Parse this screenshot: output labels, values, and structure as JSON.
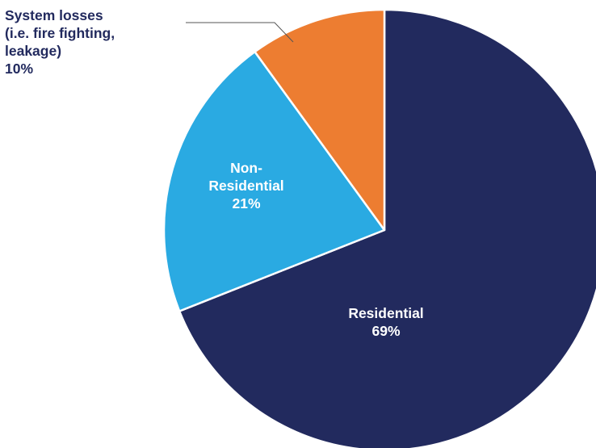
{
  "chart_data": {
    "type": "pie",
    "slices": [
      {
        "name": "Residential",
        "value": 69,
        "label_lines": [
          "Residential",
          "69%"
        ],
        "color": "#222a5e"
      },
      {
        "name": "Non-Residential",
        "value": 21,
        "label_lines": [
          "Non-",
          "Residential",
          "21%"
        ],
        "color": "#2aaae2"
      },
      {
        "name": "System losses (i.e. fire fighting, leakage)",
        "value": 10,
        "label_lines": [
          "System losses",
          "(i.e. fire fighting,",
          "leakage)",
          "10%"
        ],
        "color": "#ed7d31"
      }
    ],
    "start_angle_deg": 0,
    "direction": "clockwise",
    "legend": "none",
    "title": ""
  }
}
